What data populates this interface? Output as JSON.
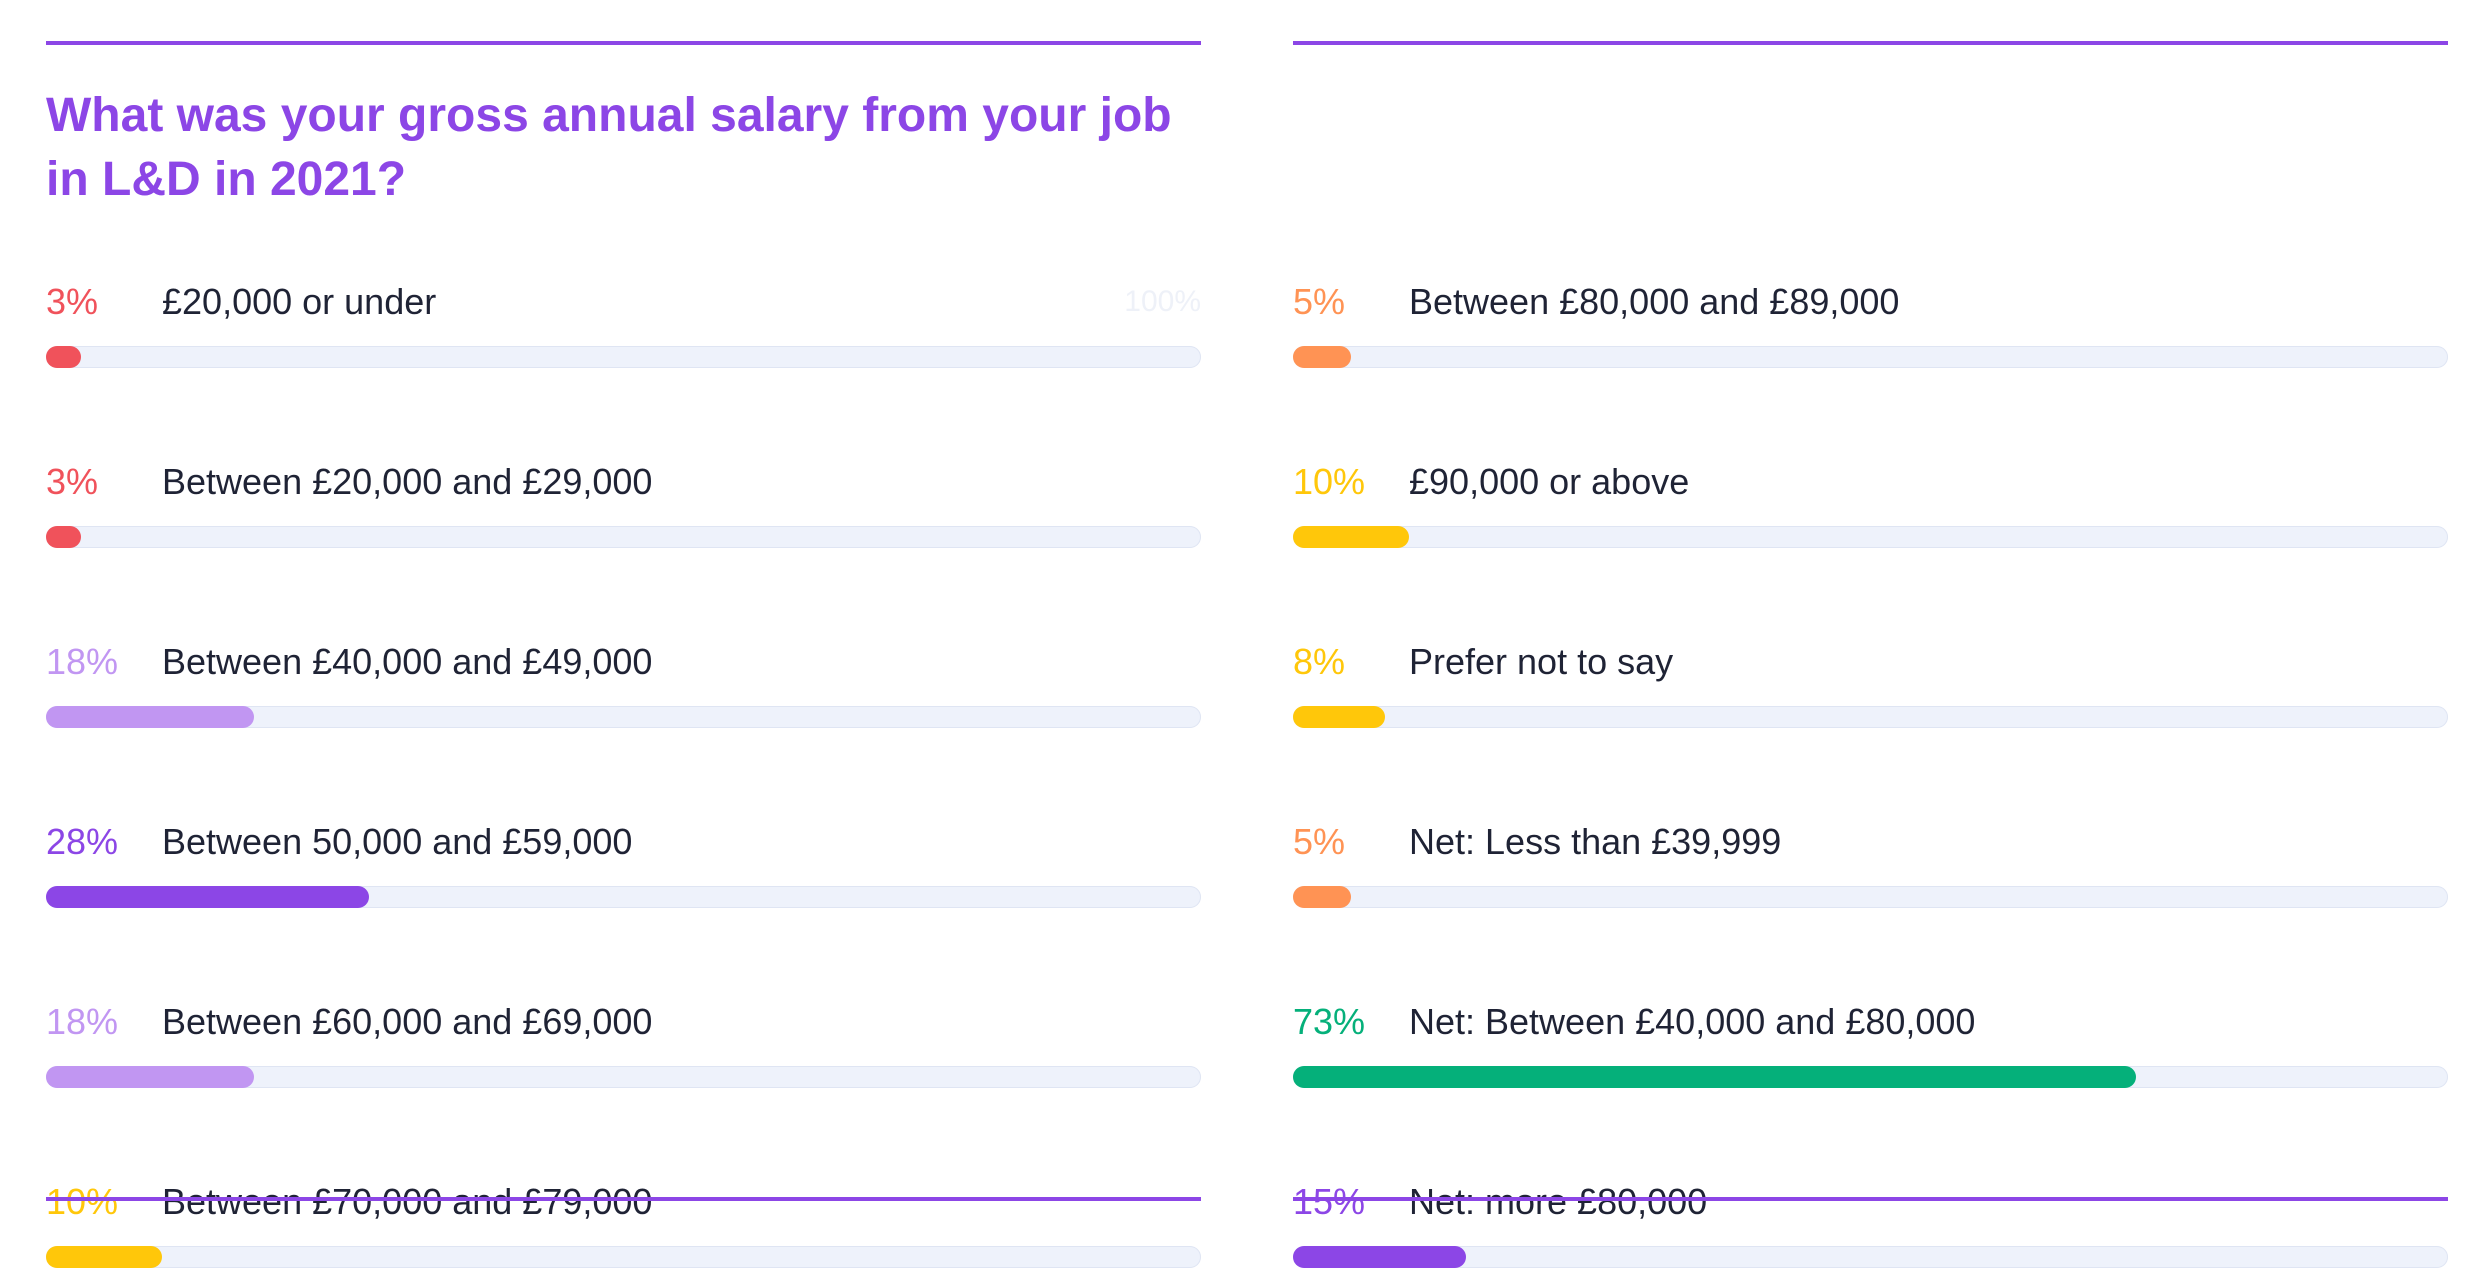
{
  "chart_data": {
    "type": "bar",
    "orientation": "horizontal",
    "title": "What was your gross annual salary from your job in L&D in 2021?",
    "scale_max_label": "100%",
    "xlim": [
      0,
      100
    ],
    "columns": [
      {
        "rows": [
          {
            "label": "£20,000 or under",
            "value": 3,
            "value_label": "3%",
            "color": "#f0525b"
          },
          {
            "label": "Between £20,000 and £29,000",
            "value": 3,
            "value_label": "3%",
            "color": "#f0525b"
          },
          {
            "label": "Between £40,000 and £49,000",
            "value": 18,
            "value_label": "18%",
            "color": "#c196f2"
          },
          {
            "label": "Between 50,000 and £59,000",
            "value": 28,
            "value_label": "28%",
            "color": "#8c46e6"
          },
          {
            "label": "Between £60,000 and £69,000",
            "value": 18,
            "value_label": "18%",
            "color": "#c196f2"
          },
          {
            "label": "Between £70,000 and £79,000",
            "value": 10,
            "value_label": "10%",
            "color": "#ffc70a"
          }
        ]
      },
      {
        "rows": [
          {
            "label": "Between £80,000 and £89,000",
            "value": 5,
            "value_label": "5%",
            "color": "#ff9354"
          },
          {
            "label": "£90,000 or above",
            "value": 10,
            "value_label": "10%",
            "color": "#ffc70a"
          },
          {
            "label": "Prefer not to say",
            "value": 8,
            "value_label": "8%",
            "color": "#ffc70a"
          },
          {
            "label": "Net: Less than £39,999",
            "value": 5,
            "value_label": "5%",
            "color": "#ff9354"
          },
          {
            "label": "Net: Between £40,000 and £80,000",
            "value": 73,
            "value_label": "73%",
            "color": "#05b07a"
          },
          {
            "label": "Net: more £80,000",
            "value": 15,
            "value_label": "15%",
            "color": "#8c46e6"
          }
        ]
      }
    ],
    "track_color": "#eef2fb",
    "rule_color": "#8c46e6"
  }
}
